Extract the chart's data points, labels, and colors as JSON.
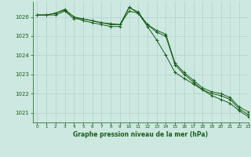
{
  "title": "Graphe pression niveau de la mer (hPa)",
  "background_color": "#cce8e0",
  "grid_color": "#aacccc",
  "text_color": "#1a5e1a",
  "line_color": "#1a5e1a",
  "xlim": [
    -0.5,
    23
  ],
  "ylim": [
    1020.5,
    1026.8
  ],
  "yticks": [
    1021,
    1022,
    1023,
    1024,
    1025,
    1026
  ],
  "xticks": [
    0,
    1,
    2,
    3,
    4,
    5,
    6,
    7,
    8,
    9,
    10,
    11,
    12,
    13,
    14,
    15,
    16,
    17,
    18,
    19,
    20,
    21,
    22,
    23
  ],
  "series": [
    [
      1026.1,
      1026.1,
      1026.1,
      1026.3,
      1025.9,
      1025.9,
      1025.8,
      1025.7,
      1025.6,
      1025.6,
      1026.3,
      1026.2,
      1025.5,
      1024.8,
      1024.0,
      1023.1,
      1022.8,
      1022.5,
      1022.2,
      1021.9,
      1021.7,
      1021.5,
      1021.1,
      1020.8
    ],
    [
      1026.1,
      1026.1,
      1026.2,
      1026.4,
      1026.0,
      1025.8,
      1025.7,
      1025.6,
      1025.5,
      1025.5,
      1026.5,
      1026.2,
      1025.6,
      1025.2,
      1025.0,
      1023.5,
      1023.0,
      1022.6,
      1022.2,
      1022.0,
      1021.9,
      1021.7,
      1021.2,
      1020.9
    ],
    [
      1026.1,
      1026.1,
      1026.2,
      1026.35,
      1026.0,
      1025.9,
      1025.8,
      1025.7,
      1025.65,
      1025.6,
      1026.5,
      1026.25,
      1025.6,
      1025.3,
      1025.1,
      1023.6,
      1023.1,
      1022.7,
      1022.3,
      1022.1,
      1022.0,
      1021.8,
      1021.3,
      1021.05
    ]
  ],
  "figsize": [
    3.2,
    2.0
  ],
  "dpi": 100
}
